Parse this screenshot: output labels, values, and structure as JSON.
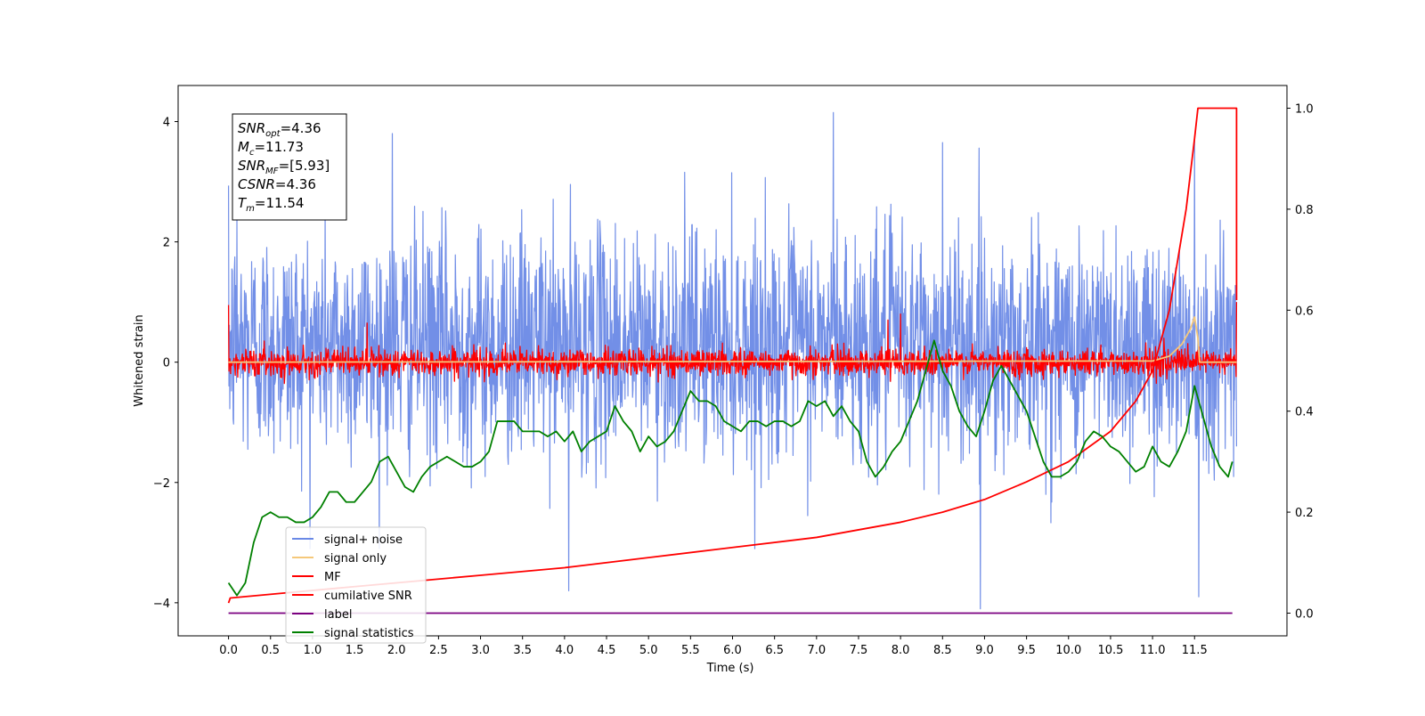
{
  "chart_data": {
    "type": "line",
    "title": "",
    "xlabel": "Time (s)",
    "ylabel": "Whitened strain",
    "xlim": [
      -0.6,
      12.6
    ],
    "ylim": [
      -4.55,
      4.6
    ],
    "y2lim": [
      -0.045,
      1.045
    ],
    "grid": false,
    "legend_position": "lower-left",
    "x_ticks": [
      0.0,
      0.5,
      1.0,
      1.5,
      2.0,
      2.5,
      3.0,
      3.5,
      4.0,
      4.5,
      5.0,
      5.5,
      6.0,
      6.5,
      7.0,
      7.5,
      8.0,
      8.5,
      9.0,
      9.5,
      10.0,
      10.5,
      11.0,
      11.5
    ],
    "x_tick_labels": [
      "0.0",
      "0.5",
      "1.0",
      "1.5",
      "2.0",
      "2.5",
      "3.0",
      "3.5",
      "4.0",
      "4.5",
      "5.0",
      "5.5",
      "6.0",
      "6.5",
      "7.0",
      "7.5",
      "8.0",
      "8.5",
      "9.0",
      "9.5",
      "10.0",
      "10.5",
      "11.0",
      "11.5"
    ],
    "y_ticks": [
      -4,
      -2,
      0,
      2,
      4
    ],
    "y_tick_labels": [
      "−4",
      "−2",
      "0",
      "2",
      "4"
    ],
    "y2_ticks": [
      0.0,
      0.2,
      0.4,
      0.6,
      0.8,
      1.0
    ],
    "y2_tick_labels": [
      "0.0",
      "0.2",
      "0.4",
      "0.6",
      "0.8",
      "1.0"
    ],
    "stats_box": [
      {
        "name": "SNR",
        "sub": "opt",
        "value": "=4.36"
      },
      {
        "name": "M",
        "sub": "c",
        "value": "=11.73"
      },
      {
        "name": "SNR",
        "sub": "MF",
        "value": "=[5.93]"
      },
      {
        "name": "CSNR",
        "sub": "",
        "value": "=4.36"
      },
      {
        "name": "T",
        "sub": "m",
        "value": "=11.54"
      }
    ],
    "series": [
      {
        "name": "signal+ noise",
        "axis": "left",
        "color": "#6a89e6",
        "kind": "noise",
        "x_range": [
          0.0,
          12.0
        ],
        "mean": 0.3,
        "amplitude_range": [
          -4.1,
          4.15
        ],
        "peaks": [
          [
            0.1,
            2.4
          ],
          [
            1.95,
            3.8
          ],
          [
            4.05,
            -3.8
          ],
          [
            7.2,
            4.15
          ],
          [
            8.95,
            -4.1
          ],
          [
            8.5,
            3.65
          ],
          [
            11.5,
            3.75
          ],
          [
            11.55,
            -3.9
          ]
        ]
      },
      {
        "name": "signal only",
        "axis": "left",
        "color": "#f5c87a",
        "kind": "chirp",
        "x": [
          0.0,
          11.0,
          11.2,
          11.35,
          11.45,
          11.5,
          11.54,
          11.56,
          12.0
        ],
        "y": [
          0.0,
          0.02,
          0.1,
          0.3,
          0.55,
          0.75,
          0.4,
          0.0,
          0.0
        ]
      },
      {
        "name": "MF",
        "axis": "left",
        "color": "#ff0000",
        "kind": "noise",
        "x_range": [
          0.0,
          12.0
        ],
        "mean": 0.0,
        "amplitude_range": [
          -0.25,
          0.65
        ],
        "peaks": [
          [
            0.0,
            0.95
          ],
          [
            1.65,
            0.65
          ],
          [
            7.85,
            0.7
          ],
          [
            8.0,
            0.8
          ],
          [
            12.0,
            1.0
          ]
        ]
      },
      {
        "name": "cumilative SNR",
        "axis": "right",
        "color": "#ff0000",
        "kind": "line",
        "x": [
          0.0,
          0.02,
          1.0,
          2.0,
          3.0,
          4.0,
          5.0,
          6.0,
          7.0,
          8.0,
          8.5,
          9.0,
          9.5,
          10.0,
          10.5,
          10.8,
          11.0,
          11.2,
          11.3,
          11.4,
          11.45,
          11.5,
          11.54,
          12.0,
          12.0
        ],
        "y": [
          0.02,
          0.03,
          0.045,
          0.06,
          0.075,
          0.09,
          0.11,
          0.13,
          0.15,
          0.18,
          0.2,
          0.225,
          0.26,
          0.3,
          0.36,
          0.42,
          0.48,
          0.6,
          0.7,
          0.8,
          0.87,
          0.94,
          1.0,
          1.0,
          0.62
        ]
      },
      {
        "name": "label",
        "axis": "right",
        "color": "#7b0080",
        "kind": "line",
        "x": [
          0.0,
          11.95
        ],
        "y": [
          0.0,
          0.0
        ]
      },
      {
        "name": "signal statistics",
        "axis": "right",
        "color": "#008000",
        "kind": "line",
        "x": [
          0.0,
          0.1,
          0.2,
          0.3,
          0.4,
          0.5,
          0.6,
          0.7,
          0.8,
          0.9,
          1.0,
          1.1,
          1.2,
          1.3,
          1.4,
          1.5,
          1.6,
          1.7,
          1.8,
          1.9,
          2.0,
          2.1,
          2.2,
          2.3,
          2.4,
          2.5,
          2.6,
          2.7,
          2.8,
          2.9,
          3.0,
          3.1,
          3.2,
          3.3,
          3.4,
          3.5,
          3.6,
          3.7,
          3.8,
          3.9,
          4.0,
          4.1,
          4.2,
          4.3,
          4.4,
          4.5,
          4.6,
          4.7,
          4.8,
          4.9,
          5.0,
          5.1,
          5.2,
          5.3,
          5.4,
          5.5,
          5.6,
          5.7,
          5.8,
          5.9,
          6.0,
          6.1,
          6.2,
          6.3,
          6.4,
          6.5,
          6.6,
          6.7,
          6.8,
          6.9,
          7.0,
          7.1,
          7.2,
          7.3,
          7.4,
          7.5,
          7.6,
          7.7,
          7.8,
          7.9,
          8.0,
          8.1,
          8.2,
          8.3,
          8.4,
          8.5,
          8.6,
          8.7,
          8.8,
          8.9,
          9.0,
          9.1,
          9.2,
          9.3,
          9.4,
          9.5,
          9.6,
          9.7,
          9.8,
          9.9,
          10.0,
          10.1,
          10.2,
          10.3,
          10.4,
          10.5,
          10.6,
          10.7,
          10.8,
          10.9,
          11.0,
          11.1,
          11.2,
          11.3,
          11.4,
          11.5,
          11.6,
          11.7,
          11.8,
          11.9,
          11.95
        ],
        "y": [
          0.06,
          0.035,
          0.06,
          0.14,
          0.19,
          0.2,
          0.19,
          0.19,
          0.18,
          0.18,
          0.19,
          0.21,
          0.24,
          0.24,
          0.22,
          0.22,
          0.24,
          0.26,
          0.3,
          0.31,
          0.28,
          0.25,
          0.24,
          0.27,
          0.29,
          0.3,
          0.31,
          0.3,
          0.29,
          0.29,
          0.3,
          0.32,
          0.38,
          0.38,
          0.38,
          0.36,
          0.36,
          0.36,
          0.35,
          0.36,
          0.34,
          0.36,
          0.32,
          0.34,
          0.35,
          0.36,
          0.41,
          0.38,
          0.36,
          0.32,
          0.35,
          0.33,
          0.34,
          0.36,
          0.4,
          0.44,
          0.42,
          0.42,
          0.41,
          0.38,
          0.37,
          0.36,
          0.38,
          0.38,
          0.37,
          0.38,
          0.38,
          0.37,
          0.38,
          0.42,
          0.41,
          0.42,
          0.39,
          0.41,
          0.38,
          0.36,
          0.3,
          0.27,
          0.29,
          0.32,
          0.34,
          0.38,
          0.42,
          0.48,
          0.54,
          0.48,
          0.45,
          0.4,
          0.37,
          0.35,
          0.4,
          0.46,
          0.49,
          0.46,
          0.43,
          0.4,
          0.35,
          0.3,
          0.27,
          0.27,
          0.28,
          0.3,
          0.34,
          0.36,
          0.35,
          0.33,
          0.32,
          0.3,
          0.28,
          0.29,
          0.33,
          0.3,
          0.29,
          0.32,
          0.36,
          0.45,
          0.39,
          0.33,
          0.29,
          0.27,
          0.3
        ]
      }
    ]
  }
}
